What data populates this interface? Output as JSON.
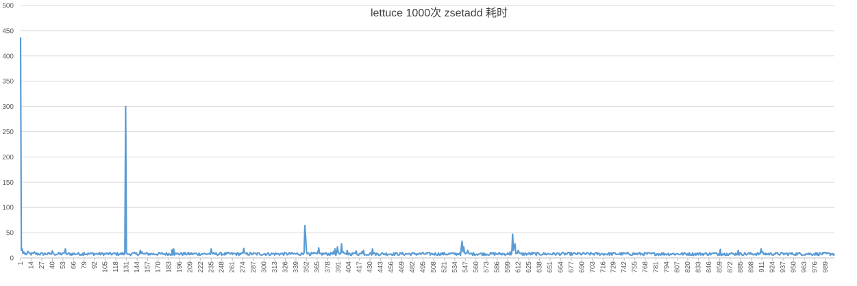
{
  "chart_data": {
    "type": "line",
    "title": "lettuce 1000次 zsetadd 耗时",
    "xlabel": "",
    "ylabel": "",
    "ylim": [
      0,
      500
    ],
    "yticks": [
      0,
      50,
      100,
      150,
      200,
      250,
      300,
      350,
      400,
      450,
      500
    ],
    "xlim": [
      1,
      1000
    ],
    "xtick_labels": [
      1,
      14,
      27,
      40,
      53,
      66,
      79,
      92,
      105,
      118,
      131,
      144,
      157,
      170,
      183,
      196,
      209,
      222,
      235,
      248,
      261,
      274,
      287,
      300,
      313,
      326,
      339,
      352,
      365,
      378,
      391,
      404,
      417,
      430,
      443,
      456,
      469,
      482,
      495,
      508,
      521,
      534,
      547,
      560,
      573,
      586,
      599,
      612,
      625,
      638,
      651,
      664,
      677,
      690,
      703,
      716,
      729,
      742,
      755,
      768,
      781,
      794,
      807,
      820,
      833,
      846,
      859,
      872,
      885,
      898,
      911,
      924,
      937,
      950,
      963,
      976,
      989
    ],
    "grid": "horizontal",
    "legend": "none",
    "color": "#5b9bd5",
    "series": [
      {
        "baseline": 8,
        "x": [
          1,
          2,
          3,
          4,
          5,
          6,
          10,
          18,
          38,
          40,
          42,
          55,
          56,
          57,
          79,
          90,
          129,
          130,
          131,
          132,
          133,
          148,
          150,
          152,
          187,
          189,
          192,
          233,
          235,
          237,
          273,
          275,
          277,
          349,
          350,
          351,
          352,
          353,
          354,
          355,
          365,
          367,
          369,
          383,
          385,
          387,
          389,
          390,
          392,
          395,
          397,
          400,
          402,
          405,
          410,
          413,
          418,
          420,
          422,
          430,
          433,
          436,
          540,
          542,
          543,
          544,
          545,
          548,
          550,
          553,
          600,
          602,
          604,
          605,
          606,
          607,
          608,
          610,
          612,
          614,
          852,
          860,
          868,
          882,
          908,
          910,
          912
        ],
        "y": [
          437,
          15,
          18,
          9,
          12,
          8,
          13,
          12,
          9,
          14,
          8,
          10,
          18,
          8,
          11,
          10,
          7,
          300,
          10,
          8,
          7,
          15,
          12,
          8,
          16,
          18,
          8,
          9,
          18,
          8,
          10,
          19,
          9,
          10,
          64,
          40,
          12,
          8,
          10,
          9,
          8,
          20,
          9,
          9,
          12,
          18,
          10,
          22,
          9,
          28,
          12,
          8,
          15,
          9,
          10,
          14,
          9,
          12,
          15,
          10,
          18,
          9,
          10,
          20,
          33,
          12,
          22,
          10,
          15,
          9,
          8,
          12,
          10,
          47,
          15,
          25,
          28,
          10,
          15,
          9,
          10,
          17,
          9,
          15,
          9,
          18,
          12
        ]
      }
    ]
  }
}
